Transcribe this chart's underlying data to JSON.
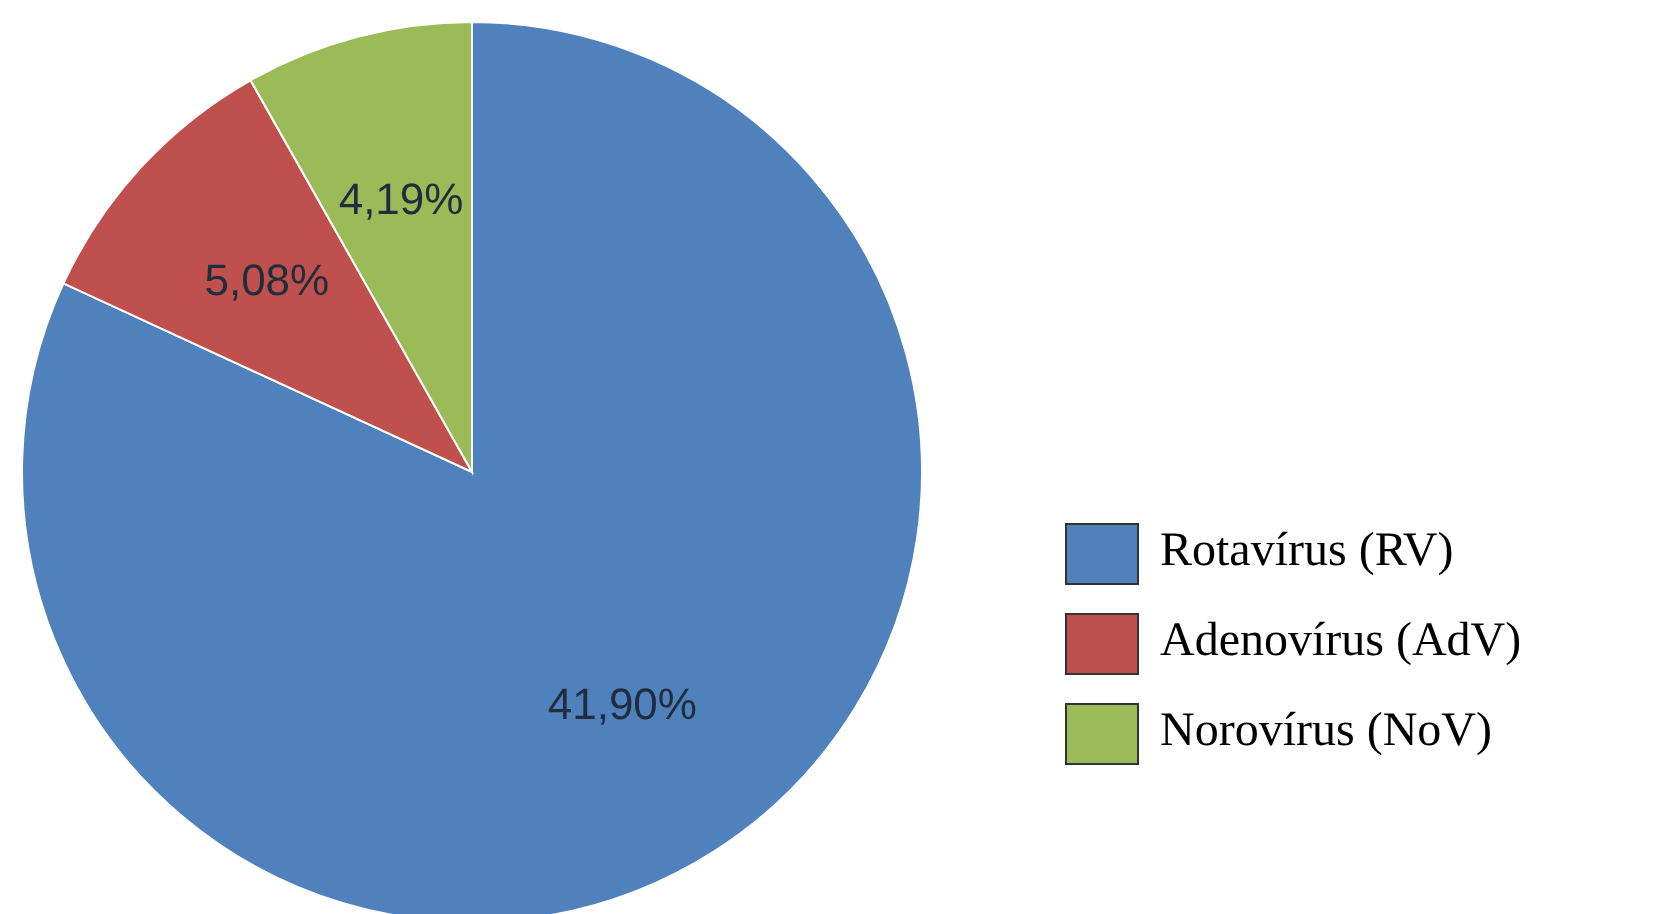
{
  "chart_data": {
    "type": "pie",
    "categories": [
      "Rotavírus (RV)",
      "Adenovírus (AdV)",
      "Norovírus (NoV)"
    ],
    "values": [
      41.9,
      5.08,
      4.19
    ],
    "colors": [
      "#4f81bd",
      "#c0504d",
      "#9bbb59"
    ],
    "value_labels": [
      "41,90%",
      "5,08%",
      "4,19%"
    ],
    "legend": "right"
  }
}
